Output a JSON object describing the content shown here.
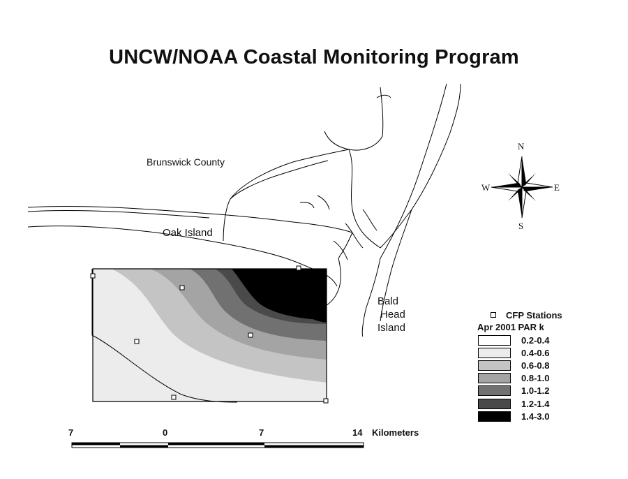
{
  "title": "UNCW/NOAA Coastal Monitoring Program",
  "places": {
    "brunswick": "Brunswick County",
    "oak_island": "Oak Island",
    "bald_head": [
      "Bald",
      "Head",
      "Island"
    ]
  },
  "compass": {
    "n": "N",
    "s": "S",
    "e": "E",
    "w": "W"
  },
  "legend": {
    "stations_label": "CFP Stations",
    "title": "Apr 2001 PAR k",
    "classes": [
      {
        "label": "0.2-0.4",
        "color": "#ffffff"
      },
      {
        "label": "0.4-0.6",
        "color": "#ececec"
      },
      {
        "label": "0.6-0.8",
        "color": "#c4c4c4"
      },
      {
        "label": "0.8-1.0",
        "color": "#a4a4a4"
      },
      {
        "label": "1.0-1.2",
        "color": "#717171"
      },
      {
        "label": "1.2-1.4",
        "color": "#4a4a4a"
      },
      {
        "label": "1.4-3.0",
        "color": "#000000"
      }
    ]
  },
  "scale_bar": {
    "ticks": [
      "7",
      "0",
      "7",
      "14"
    ],
    "unit": "Kilometers"
  }
}
